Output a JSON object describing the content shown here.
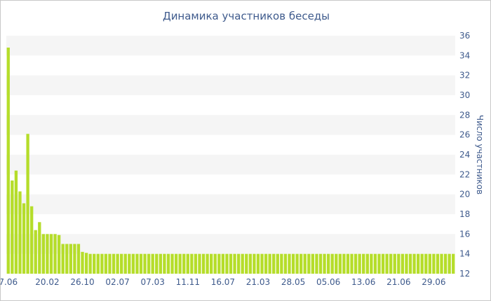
{
  "chart_data": {
    "type": "bar",
    "title": "Динамика участников беседы",
    "xlabel": "",
    "ylabel": "Число участников",
    "ylim": [
      12,
      36
    ],
    "yticks": [
      12,
      14,
      16,
      18,
      20,
      22,
      24,
      26,
      28,
      30,
      32,
      34,
      36
    ],
    "xtick_labels": [
      "7.06",
      "20.02",
      "26.10",
      "02.07",
      "07.03",
      "11.11",
      "16.07",
      "21.03",
      "28.05",
      "05.06",
      "13.06",
      "21.06",
      "29.06"
    ],
    "xtick_bar_index": [
      0,
      10,
      19,
      28,
      37,
      46,
      55,
      64,
      73,
      82,
      91,
      100,
      109
    ],
    "values": [
      34.8,
      21.4,
      22.4,
      20.3,
      19.1,
      26.1,
      18.8,
      16.4,
      17.2,
      16.0,
      16.0,
      16.0,
      16.0,
      15.9,
      15.0,
      15.0,
      15.0,
      15.0,
      15.0,
      14.2,
      14.1,
      14,
      14,
      14,
      14,
      14,
      14,
      14,
      14,
      14,
      14,
      14,
      14,
      14,
      14,
      14,
      14,
      14,
      14,
      14,
      14,
      14,
      14,
      14,
      14,
      14,
      14,
      14,
      14,
      14,
      14,
      14,
      14,
      14,
      14,
      14,
      14,
      14,
      14,
      14,
      14,
      14,
      14,
      14,
      14,
      14,
      14,
      14,
      14,
      14,
      14,
      14,
      14,
      14,
      14,
      14,
      14,
      14,
      14,
      14,
      14,
      14,
      14,
      14,
      14,
      14,
      14,
      14,
      14,
      14,
      14,
      14,
      14,
      14,
      14,
      14,
      14,
      14,
      14,
      14,
      14,
      14,
      14,
      14,
      14,
      14,
      14,
      14,
      14,
      14,
      14,
      14,
      14,
      14,
      14
    ],
    "bar_color": "#b5dd2a",
    "band_color": "#f5f5f5",
    "axis_text_color": "#3e5a8c",
    "grid": "alternating-bands",
    "legend": "none"
  }
}
